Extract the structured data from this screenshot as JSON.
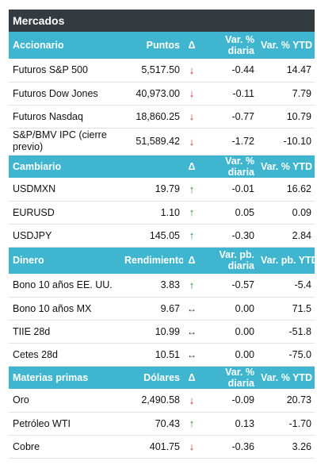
{
  "title": "Mercados",
  "sections": {
    "accionario": {
      "headers": [
        "Accionario",
        "Puntos",
        "Δ",
        "Var. % diaria",
        "Var. % YTD"
      ],
      "rows": [
        {
          "name": "Futuros S&P 500",
          "value": "5,517.50",
          "dir": "down",
          "daily": "-0.44",
          "ytd": "14.47"
        },
        {
          "name": "Futuros Dow Jones",
          "value": "40,973.00",
          "dir": "down",
          "daily": "-0.11",
          "ytd": "7.79"
        },
        {
          "name": "Futuros Nasdaq",
          "value": "18,860.25",
          "dir": "down",
          "daily": "-0.77",
          "ytd": "10.79"
        },
        {
          "name": "S&P/BMV IPC (cierre previo)",
          "value": "51,589.42",
          "dir": "down",
          "daily": "-1.72",
          "ytd": "-10.10"
        }
      ]
    },
    "cambiario": {
      "headers": [
        "Cambiario",
        "",
        "Δ",
        "Var. % diaria",
        "Var. % YTD"
      ],
      "rows": [
        {
          "name": "USDMXN",
          "value": "19.79",
          "dir": "up",
          "daily": "-0.01",
          "ytd": "16.62"
        },
        {
          "name": "EURUSD",
          "value": "1.10",
          "dir": "up",
          "daily": "0.05",
          "ytd": "0.09"
        },
        {
          "name": "USDJPY",
          "value": "145.05",
          "dir": "up",
          "daily": "-0.30",
          "ytd": "2.84"
        }
      ]
    },
    "dinero": {
      "headers": [
        "Dinero",
        "Rendimiento",
        "Δ",
        "Var. pb. diaria",
        "Var. pb. YTD"
      ],
      "rows": [
        {
          "name": "Bono 10 años EE. UU.",
          "value": "3.83",
          "dir": "up",
          "daily": "-0.57",
          "ytd": "-5.4"
        },
        {
          "name": "Bono 10 años MX",
          "value": "9.67",
          "dir": "flat",
          "daily": "0.00",
          "ytd": "71.5"
        },
        {
          "name": "TIIE 28d",
          "value": "10.99",
          "dir": "flat",
          "daily": "0.00",
          "ytd": "-51.8"
        },
        {
          "name": "Cetes 28d",
          "value": "10.51",
          "dir": "flat",
          "daily": "0.00",
          "ytd": "-75.0"
        }
      ]
    },
    "materias": {
      "headers": [
        "Materias primas",
        "Dólares",
        "Δ",
        "Var. % diaria",
        "Var. % YTD"
      ],
      "rows": [
        {
          "name": "Oro",
          "value": "2,490.58",
          "dir": "down",
          "daily": "-0.09",
          "ytd": "20.73"
        },
        {
          "name": "Petróleo WTI",
          "value": "70.43",
          "dir": "up",
          "daily": "0.13",
          "ytd": "-1.70"
        },
        {
          "name": "Cobre",
          "value": "401.75",
          "dir": "down",
          "daily": "-0.36",
          "ytd": "3.26"
        }
      ]
    }
  },
  "arrow_glyphs": {
    "down": "↓",
    "up": "↑",
    "flat": "↔"
  },
  "colors": {
    "header_bg": "#3fb5cf",
    "title_bg": "#333a40",
    "down": "#c8282d",
    "up": "#2f8a2f"
  }
}
